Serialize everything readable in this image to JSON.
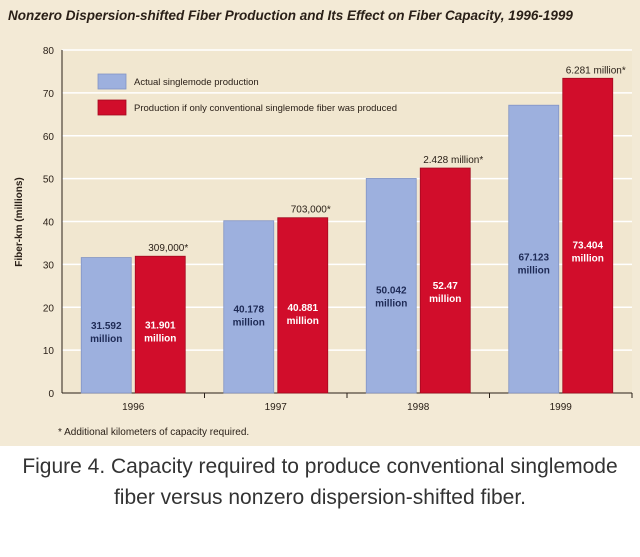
{
  "chart_data": {
    "type": "bar",
    "title": "Nonzero Dispersion-shifted Fiber Production and Its Effect on Fiber Capacity, 1996-1999",
    "ylabel": "Fiber-km (millions)",
    "xlabel": "",
    "ylim": [
      0,
      80
    ],
    "yticks": [
      0,
      10,
      20,
      30,
      40,
      50,
      60,
      70,
      80
    ],
    "categories": [
      "1996",
      "1997",
      "1998",
      "1999"
    ],
    "grid": true,
    "legend_position": "top-left",
    "series": [
      {
        "name": "Actual singlemode production",
        "color": "#9db0de",
        "values": [
          31.592,
          40.178,
          50.042,
          67.123
        ],
        "labels": [
          [
            "31.592",
            "million"
          ],
          [
            "40.178",
            "million"
          ],
          [
            "50.042",
            "million"
          ],
          [
            "67.123",
            "million"
          ]
        ]
      },
      {
        "name": "Production if only conventional singlemode fiber was produced",
        "color": "#d10d2b",
        "values": [
          31.901,
          40.881,
          52.47,
          73.404
        ],
        "labels": [
          [
            "31.901",
            "million"
          ],
          [
            "40.881",
            "million"
          ],
          [
            "52.47",
            "million"
          ],
          [
            "73.404",
            "million"
          ]
        ]
      }
    ],
    "annotations": [
      "309,000*",
      "703,000*",
      "2.428 million*",
      "6.281 million*"
    ],
    "footnote": "* Additional kilometers of capacity required."
  },
  "caption": "Figure 4. Capacity required to produce conventional singlemode fiber versus nonzero dispersion-shifted fiber."
}
